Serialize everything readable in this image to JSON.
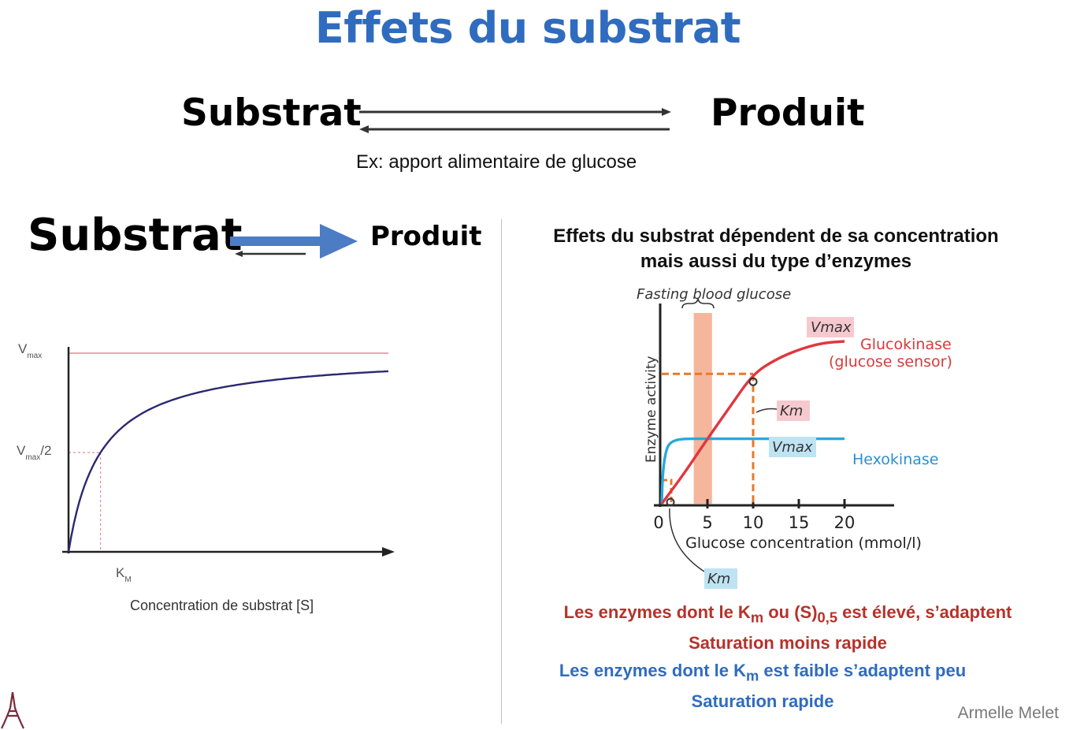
{
  "slide": {
    "title": "Effets du substrat",
    "equilibrium": {
      "substrate": "Substrat",
      "product": "Produit",
      "example": "Ex: apport alimentaire de glucose"
    },
    "shifted": {
      "substrate": "Substrat",
      "product": "Produit"
    },
    "right_panel": {
      "title_line1": "Effets du substrat dépendent de sa concentration",
      "title_line2": "mais aussi du type d’enzymes"
    },
    "conclusion_high": {
      "line1_pre": "Les enzymes dont le K",
      "line1_sub1": "m",
      "line1_mid": " ou (S)",
      "line1_sub2": "0,5",
      "line1_post": " est élevé, s’adaptent",
      "line2": "Saturation moins rapide",
      "color": "#b5322b"
    },
    "conclusion_low": {
      "line1_pre": "Les enzymes dont le K",
      "line1_sub": "m",
      "line1_post": " est faible s’adaptent peu",
      "line2": "Saturation rapide",
      "color": "#2f6cbf"
    },
    "author": "Armelle Melet",
    "logo_icon": "eiffel-tower-logo-icon",
    "accent_color": "#2f6cbf"
  },
  "chart_data": [
    {
      "type": "line",
      "title": "",
      "xlabel": "Concentration de substrat [S]",
      "ylabel": "",
      "y_tick_labels": {
        "vmax": "V",
        "vmax_sub": "max",
        "half": "V",
        "half_sub": "max",
        "half_suffix": "/2"
      },
      "x_tick_labels": {
        "km": "K",
        "km_sub": "M"
      },
      "vmax": 1.0,
      "km": 1.0,
      "xlim": [
        0,
        10
      ],
      "ylim": [
        0,
        1.2
      ],
      "series": [
        {
          "model": "michaelis-menten",
          "x": [
            0,
            0.5,
            1,
            2,
            3,
            4,
            5,
            6,
            7,
            8,
            9,
            10
          ],
          "y": [
            0,
            0.333,
            0.5,
            0.667,
            0.75,
            0.8,
            0.833,
            0.857,
            0.875,
            0.889,
            0.9,
            0.909
          ],
          "color": "#2b2870"
        }
      ],
      "reference_lines": {
        "vmax_line_color": "#e58a96",
        "half_dash_color": "#e58a96"
      },
      "grid": false,
      "legend": "none"
    },
    {
      "type": "line",
      "title": "",
      "xlabel": "Glucose concentration (mmol/l)",
      "ylabel": "Enzyme activity",
      "x_ticks": [
        0,
        5,
        10,
        15,
        20
      ],
      "xlim": [
        0,
        25
      ],
      "ylim": [
        0,
        1.05
      ],
      "annotations": {
        "band_label": "Fasting blood glucose",
        "band_range": [
          3.5,
          5.5
        ],
        "band_color": "#f4a98b",
        "gk_vmax": "Vmax",
        "gk_km": "Km",
        "hk_vmax": "Vmax",
        "hk_km": "Km",
        "gk_km_value": 10,
        "hk_km_value": 0.1
      },
      "series": [
        {
          "name_line1": "Glucokinase",
          "name_line2": "(glucose sensor)",
          "color": "#e0373f",
          "x": [
            0,
            2.5,
            5,
            7.5,
            10,
            12.5,
            15,
            17.5,
            20
          ],
          "y": [
            0.0,
            0.19,
            0.4,
            0.6,
            0.8,
            0.89,
            0.95,
            0.99,
            1.0
          ]
        },
        {
          "name_line1": "Hexokinase",
          "color": "#27a9dc",
          "x": [
            0,
            0.1,
            0.5,
            1,
            2,
            5,
            10,
            15,
            20
          ],
          "y": [
            0.0,
            0.2,
            0.34,
            0.38,
            0.4,
            0.4,
            0.4,
            0.4,
            0.4
          ]
        }
      ],
      "grid": false,
      "legend": "inline"
    }
  ]
}
